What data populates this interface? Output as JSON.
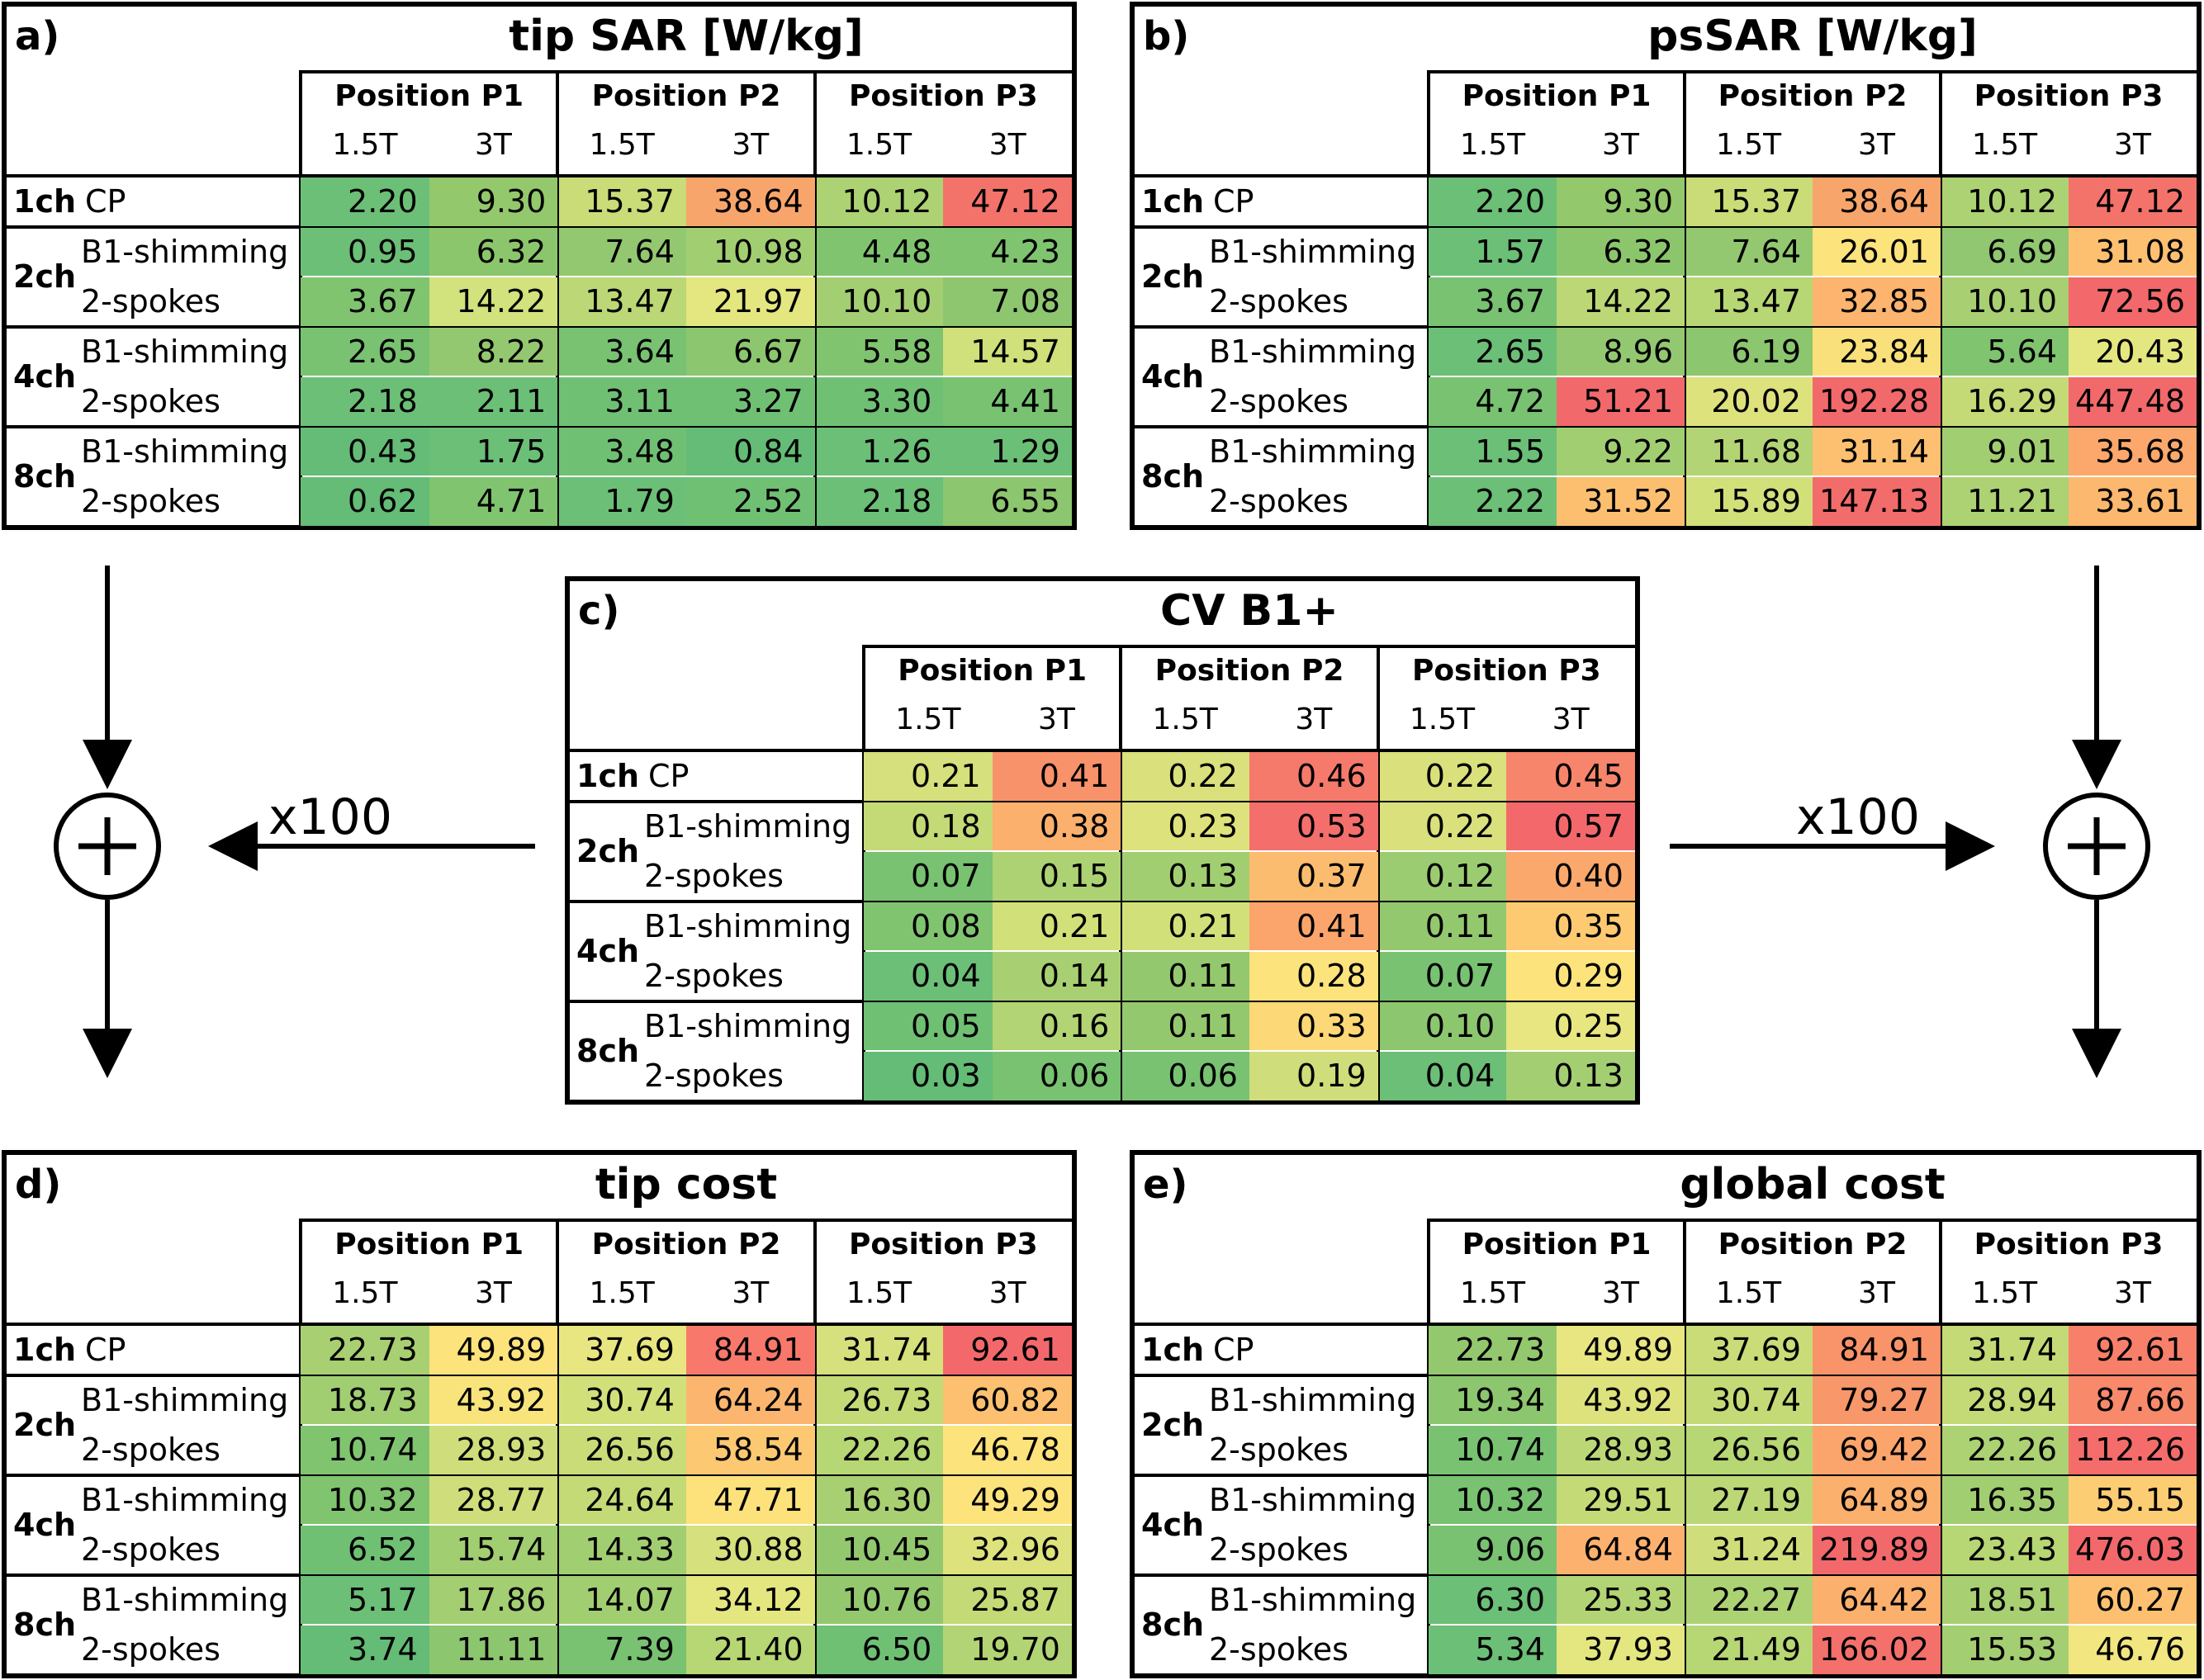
{
  "common": {
    "positions": [
      "Position P1",
      "Position P2",
      "Position P3"
    ],
    "fields": [
      "1.5T",
      "3T"
    ],
    "channels": [
      "1ch",
      "2ch",
      "4ch",
      "8ch"
    ],
    "methods": {
      "cp": "CP",
      "shim": "B1-shimming",
      "spokes": "2-spokes"
    }
  },
  "arrows": {
    "left_label": "x100",
    "right_label": "x100"
  },
  "panels": [
    {
      "id": "a",
      "letter": "a)",
      "title": "tip SAR [W/kg]",
      "rows": [
        [
          "2.20",
          "9.30",
          "15.37",
          "38.64",
          "10.12",
          "47.12"
        ],
        [
          "0.95",
          "6.32",
          "7.64",
          "10.98",
          "4.48",
          "4.23"
        ],
        [
          "3.67",
          "14.22",
          "13.47",
          "21.97",
          "10.10",
          "7.08"
        ],
        [
          "2.65",
          "8.22",
          "3.64",
          "6.67",
          "5.58",
          "14.57"
        ],
        [
          "2.18",
          "2.11",
          "3.11",
          "3.27",
          "3.30",
          "4.41"
        ],
        [
          "0.43",
          "1.75",
          "3.48",
          "0.84",
          "1.26",
          "1.29"
        ],
        [
          "0.62",
          "4.71",
          "1.79",
          "2.52",
          "2.18",
          "6.55"
        ]
      ],
      "colors": [
        [
          "#6cbf76",
          "#94c86c",
          "#c9dc78",
          "#f8a56c",
          "#acd274",
          "#f3736b"
        ],
        [
          "#6cbf76",
          "#8cc66c",
          "#93c870",
          "#a2ce72",
          "#80c470",
          "#80c470"
        ],
        [
          "#80c470",
          "#d2e27c",
          "#bcd876",
          "#e4e680",
          "#a4ce72",
          "#8ec670"
        ],
        [
          "#78c272",
          "#93c870",
          "#78c272",
          "#8cc66e",
          "#80c470",
          "#d0e07a"
        ],
        [
          "#6cbf76",
          "#6cbf76",
          "#70c074",
          "#70c074",
          "#70c074",
          "#78c272"
        ],
        [
          "#64bc76",
          "#6cbf76",
          "#70c074",
          "#64bc76",
          "#6cbf76",
          "#6cbf76"
        ],
        [
          "#64bc76",
          "#80c470",
          "#6cbf76",
          "#70c074",
          "#6cbf76",
          "#8cc66e"
        ]
      ]
    },
    {
      "id": "b",
      "letter": "b)",
      "title": "psSAR [W/kg]",
      "rows": [
        [
          "2.20",
          "9.30",
          "15.37",
          "38.64",
          "10.12",
          "47.12"
        ],
        [
          "1.57",
          "6.32",
          "7.64",
          "26.01",
          "6.69",
          "31.08"
        ],
        [
          "3.67",
          "14.22",
          "13.47",
          "32.85",
          "10.10",
          "72.56"
        ],
        [
          "2.65",
          "8.96",
          "6.19",
          "23.84",
          "5.64",
          "20.43"
        ],
        [
          "4.72",
          "51.21",
          "20.02",
          "192.28",
          "16.29",
          "447.48"
        ],
        [
          "1.55",
          "9.22",
          "11.68",
          "31.14",
          "9.01",
          "35.68"
        ],
        [
          "2.22",
          "31.52",
          "15.89",
          "147.13",
          "11.21",
          "33.61"
        ]
      ],
      "colors": [
        [
          "#6cbf76",
          "#94c86c",
          "#c9dc78",
          "#f8a56c",
          "#acd274",
          "#f3736b"
        ],
        [
          "#6cbf76",
          "#8cc66c",
          "#93c870",
          "#fde37c",
          "#90c770",
          "#fcc070"
        ],
        [
          "#78c272",
          "#bcd876",
          "#b7d674",
          "#fcb46e",
          "#a8d072",
          "#f3696b"
        ],
        [
          "#6cbf76",
          "#93c870",
          "#8cc66e",
          "#f9e07a",
          "#80c470",
          "#e4e680"
        ],
        [
          "#78c272",
          "#f2696b",
          "#dde27c",
          "#f2696b",
          "#c4da76",
          "#f2696b"
        ],
        [
          "#6cbf76",
          "#a2ce72",
          "#b3d474",
          "#fcc070",
          "#a2ce72",
          "#fca86c"
        ],
        [
          "#6cbf76",
          "#fcbf70",
          "#d2e07a",
          "#f26c6b",
          "#acd274",
          "#fcb86e"
        ]
      ]
    },
    {
      "id": "c",
      "letter": "c)",
      "title": "CV B1+",
      "rows": [
        [
          "0.21",
          "0.41",
          "0.22",
          "0.46",
          "0.22",
          "0.45"
        ],
        [
          "0.18",
          "0.38",
          "0.23",
          "0.53",
          "0.22",
          "0.57"
        ],
        [
          "0.07",
          "0.15",
          "0.13",
          "0.37",
          "0.12",
          "0.40"
        ],
        [
          "0.08",
          "0.21",
          "0.21",
          "0.41",
          "0.11",
          "0.35"
        ],
        [
          "0.04",
          "0.14",
          "0.11",
          "0.28",
          "0.07",
          "0.29"
        ],
        [
          "0.05",
          "0.16",
          "0.11",
          "0.33",
          "0.10",
          "0.25"
        ],
        [
          "0.03",
          "0.06",
          "0.06",
          "0.19",
          "0.04",
          "0.13"
        ]
      ],
      "colors": [
        [
          "#d6e07c",
          "#f8926a",
          "#d9e07c",
          "#f57a6b",
          "#d9e07c",
          "#f7856b"
        ],
        [
          "#c4da76",
          "#fbb06d",
          "#dde27c",
          "#f46e6b",
          "#d9e07c",
          "#f2686b"
        ],
        [
          "#78c272",
          "#acd274",
          "#a2ce72",
          "#fcbc70",
          "#9ccc72",
          "#fba86c"
        ],
        [
          "#80c470",
          "#d2e07a",
          "#d2e07a",
          "#fba56c",
          "#94c86e",
          "#fdca72"
        ],
        [
          "#6cbf76",
          "#a8d072",
          "#94c86e",
          "#fde37c",
          "#78c272",
          "#fde37c"
        ],
        [
          "#70c074",
          "#b3d474",
          "#94c86e",
          "#fdd876",
          "#8cc66e",
          "#e8e680"
        ],
        [
          "#64bc76",
          "#78c272",
          "#78c272",
          "#cfde7a",
          "#6cbf76",
          "#a4ce72"
        ]
      ]
    },
    {
      "id": "d",
      "letter": "d)",
      "title": "tip cost",
      "rows": [
        [
          "22.73",
          "49.89",
          "37.69",
          "84.91",
          "31.74",
          "92.61"
        ],
        [
          "18.73",
          "43.92",
          "30.74",
          "64.24",
          "26.73",
          "60.82"
        ],
        [
          "10.74",
          "28.93",
          "26.56",
          "58.54",
          "22.26",
          "46.78"
        ],
        [
          "10.32",
          "28.77",
          "24.64",
          "47.71",
          "16.30",
          "49.29"
        ],
        [
          "6.52",
          "15.74",
          "14.33",
          "30.88",
          "10.45",
          "32.96"
        ],
        [
          "5.17",
          "17.86",
          "14.07",
          "34.12",
          "10.76",
          "25.87"
        ],
        [
          "3.74",
          "11.11",
          "7.39",
          "21.40",
          "6.50",
          "19.70"
        ]
      ],
      "colors": [
        [
          "#a8d072",
          "#fde37c",
          "#e8e680",
          "#f8786b",
          "#d6e07c",
          "#f3696b"
        ],
        [
          "#a2ce72",
          "#f9e47c",
          "#d2e07a",
          "#fbb56e",
          "#c4da76",
          "#fcc070"
        ],
        [
          "#80c470",
          "#cfde7a",
          "#c9dc78",
          "#fcc872",
          "#b7d674",
          "#fde37c"
        ],
        [
          "#80c470",
          "#cfde7a",
          "#c4da76",
          "#fde27c",
          "#a8d072",
          "#fde37c"
        ],
        [
          "#70c074",
          "#a2ce72",
          "#a2ce72",
          "#d6e07c",
          "#94c86e",
          "#dde27c"
        ],
        [
          "#6cbf76",
          "#a4ce72",
          "#a2ce72",
          "#e4e680",
          "#94c86e",
          "#c4da76"
        ],
        [
          "#64bc76",
          "#8cc66e",
          "#78c272",
          "#b7d674",
          "#70c074",
          "#b3d474"
        ]
      ]
    },
    {
      "id": "e",
      "letter": "e)",
      "title": "global cost",
      "rows": [
        [
          "22.73",
          "49.89",
          "37.69",
          "84.91",
          "31.74",
          "92.61"
        ],
        [
          "19.34",
          "43.92",
          "30.74",
          "79.27",
          "28.94",
          "87.66"
        ],
        [
          "10.74",
          "28.93",
          "26.56",
          "69.42",
          "22.26",
          "112.26"
        ],
        [
          "10.32",
          "29.51",
          "27.19",
          "64.89",
          "16.35",
          "55.15"
        ],
        [
          "9.06",
          "64.84",
          "31.24",
          "219.89",
          "23.43",
          "476.03"
        ],
        [
          "6.30",
          "25.33",
          "22.27",
          "64.42",
          "18.51",
          "60.27"
        ],
        [
          "5.34",
          "37.93",
          "21.49",
          "166.02",
          "15.53",
          "46.76"
        ]
      ],
      "colors": [
        [
          "#94c86e",
          "#e8e680",
          "#c9dc78",
          "#f8936a",
          "#c4da76",
          "#f8806b"
        ],
        [
          "#8cc66e",
          "#dde27c",
          "#c4da76",
          "#f8976a",
          "#c4da76",
          "#f8896b"
        ],
        [
          "#78c272",
          "#bcd876",
          "#b7d674",
          "#fba56c",
          "#acd274",
          "#f46d6b"
        ],
        [
          "#78c272",
          "#c4da76",
          "#bcd876",
          "#fcb06e",
          "#a2ce72",
          "#fdcd74"
        ],
        [
          "#78c272",
          "#fcb26e",
          "#cfde7a",
          "#f2696b",
          "#b7d674",
          "#f2686b"
        ],
        [
          "#6cbf76",
          "#b3d474",
          "#acd274",
          "#fcb06e",
          "#a8d072",
          "#fcc070"
        ],
        [
          "#6cbf76",
          "#e4e680",
          "#b7d674",
          "#f3706b",
          "#a4ce72",
          "#f1e680"
        ]
      ]
    }
  ]
}
